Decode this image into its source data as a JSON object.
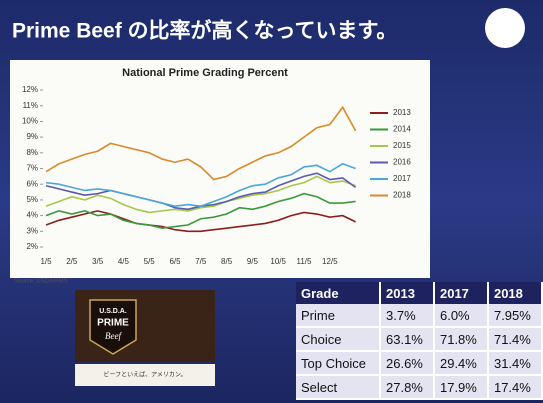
{
  "slide_title": "Prime Beef の比率が高くなっています。",
  "logo": {
    "top": "U.S.D.A.",
    "middle": "PRIME",
    "bottom": "Beef",
    "slogan": "ビーフといえば、アメリカン。"
  },
  "chart_data": {
    "type": "line",
    "title": "National Prime Grading Percent",
    "source": "Source: USDA/AMS",
    "categories": [
      "1/5",
      null,
      "2/5",
      null,
      "3/5",
      null,
      "4/5",
      null,
      "5/5",
      null,
      "6/5",
      null,
      "7/5",
      null,
      "8/5",
      null,
      "9/5",
      null,
      "10/5",
      null,
      "11/5",
      null,
      "12/5",
      null,
      null
    ],
    "ylim": [
      2,
      12
    ],
    "yticks": [
      {
        "value": 2,
        "label": "2%"
      },
      {
        "value": 3,
        "label": "3%"
      },
      {
        "value": 4,
        "label": "4%"
      },
      {
        "value": 5,
        "label": "5%"
      },
      {
        "value": 6,
        "label": "6%"
      },
      {
        "value": 7,
        "label": "7%"
      },
      {
        "value": 8,
        "label": "8%"
      },
      {
        "value": 9,
        "label": "9%"
      },
      {
        "value": 10,
        "label": "10%"
      },
      {
        "value": 11,
        "label": "11%"
      },
      {
        "value": 12,
        "label": "12%"
      }
    ],
    "grid": false,
    "series": [
      {
        "name": "2013",
        "color": "#8b1e1e",
        "values": [
          3.4,
          3.7,
          3.9,
          4.1,
          4.3,
          4.1,
          3.8,
          3.5,
          3.4,
          3.3,
          3.1,
          3.0,
          3.0,
          3.1,
          3.2,
          3.3,
          3.4,
          3.5,
          3.7,
          4.0,
          4.2,
          4.1,
          3.9,
          4.0,
          3.6
        ]
      },
      {
        "name": "2014",
        "color": "#3a9a3a",
        "values": [
          4.0,
          4.3,
          4.1,
          4.3,
          4.0,
          4.1,
          3.7,
          3.5,
          3.4,
          3.2,
          3.3,
          3.4,
          3.8,
          3.9,
          4.1,
          4.5,
          4.4,
          4.6,
          4.9,
          5.1,
          5.4,
          5.2,
          4.8,
          4.8,
          4.9
        ]
      },
      {
        "name": "2015",
        "color": "#a6c84a",
        "values": [
          4.6,
          4.9,
          5.2,
          5.0,
          5.3,
          5.1,
          4.7,
          4.4,
          4.2,
          4.3,
          4.4,
          4.3,
          4.5,
          4.6,
          4.9,
          5.1,
          5.3,
          5.4,
          5.6,
          5.9,
          6.1,
          6.5,
          6.1,
          6.2,
          5.9
        ]
      },
      {
        "name": "2016",
        "color": "#5a5ab0",
        "values": [
          5.9,
          5.7,
          5.5,
          5.3,
          5.4,
          5.6,
          5.4,
          5.2,
          5.0,
          4.8,
          4.5,
          4.4,
          4.6,
          4.7,
          4.9,
          5.2,
          5.4,
          5.5,
          5.9,
          6.2,
          6.5,
          6.7,
          6.3,
          6.4,
          5.8
        ]
      },
      {
        "name": "2017",
        "color": "#4aa8d8",
        "values": [
          6.1,
          6.0,
          5.8,
          5.6,
          5.7,
          5.6,
          5.4,
          5.2,
          5.0,
          4.8,
          4.6,
          4.7,
          4.6,
          4.9,
          5.2,
          5.6,
          5.9,
          6.0,
          6.4,
          6.6,
          7.1,
          7.2,
          6.8,
          7.3,
          7.0
        ]
      },
      {
        "name": "2018",
        "color": "#d98a2a",
        "values": [
          6.8,
          7.3,
          7.6,
          7.9,
          8.1,
          8.6,
          8.4,
          8.2,
          8.0,
          7.6,
          7.4,
          7.6,
          7.1,
          6.3,
          6.5,
          7.0,
          7.4,
          7.8,
          8.0,
          8.4,
          9.0,
          9.6,
          9.8,
          10.9,
          9.4
        ]
      }
    ]
  },
  "table": {
    "header": [
      "Grade",
      "2013",
      "2017",
      "2018"
    ],
    "rows": [
      [
        "Prime",
        "3.7%",
        "6.0%",
        "7.95%"
      ],
      [
        "Choice",
        "63.1%",
        "71.8%",
        "71.4%"
      ],
      [
        "Top Choice",
        "26.6%",
        "29.4%",
        "31.4%"
      ],
      [
        "Select",
        "27.8%",
        "17.9%",
        "17.4%"
      ]
    ]
  }
}
